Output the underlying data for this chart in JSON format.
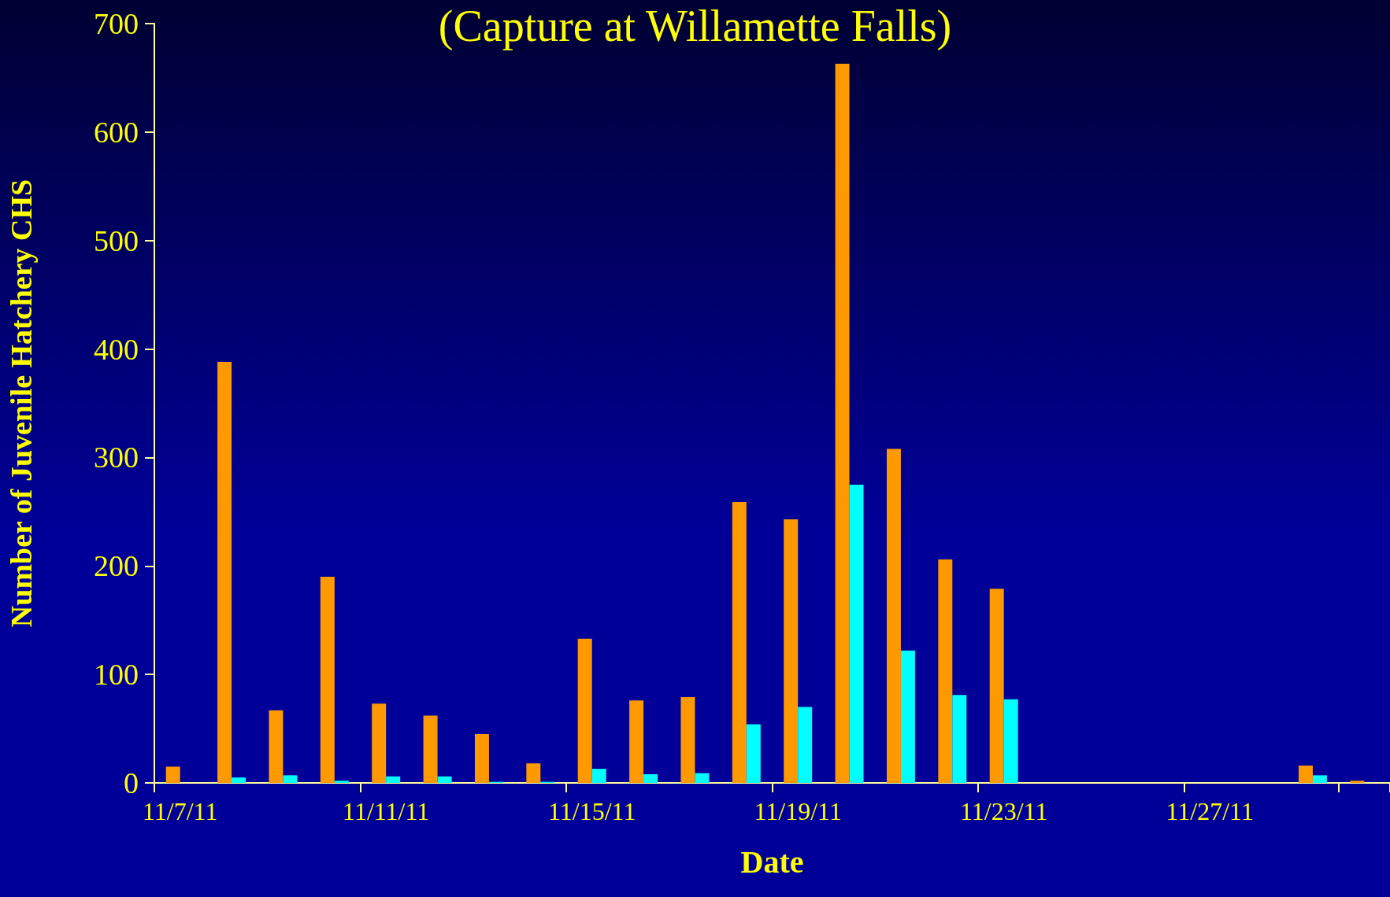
{
  "chart_data": {
    "type": "bar",
    "title": "(Capture at Willamette Falls)",
    "xlabel": "Date",
    "ylabel": "Number of Juvenile Hatchery CHS",
    "categories": [
      "11/7/11",
      null,
      null,
      null,
      "11/11/11",
      null,
      null,
      null,
      "11/15/11",
      null,
      null,
      null,
      "11/19/11",
      null,
      null,
      null,
      "11/23/11",
      null,
      null,
      null,
      "11/27/11",
      null,
      null,
      null
    ],
    "series": [
      {
        "color": "#ff9900",
        "values": [
          15,
          388,
          67,
          190,
          73,
          62,
          45,
          18,
          133,
          76,
          79,
          259,
          243,
          663,
          308,
          206,
          179,
          0,
          0,
          0,
          0,
          0,
          16,
          2
        ]
      },
      {
        "color": "#00ffff",
        "values": [
          0,
          5,
          7,
          2,
          6,
          6,
          1,
          1,
          13,
          8,
          9,
          54,
          70,
          275,
          122,
          81,
          77,
          0,
          0,
          0,
          0,
          0,
          7,
          0
        ]
      }
    ],
    "ylim": [
      0,
      700
    ],
    "yticks": [
      0,
      100,
      200,
      300,
      400,
      500,
      600,
      700
    ],
    "grid": false
  }
}
